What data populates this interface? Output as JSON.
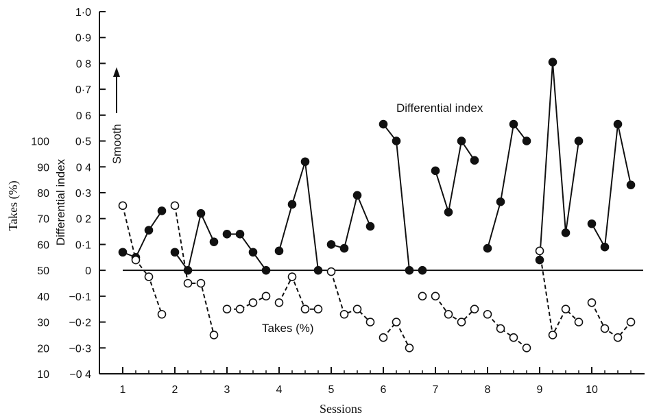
{
  "chart_data": {
    "type": "line",
    "xlabel": "Sessions",
    "ylabel_left": "Takes (%)",
    "ylabel_right": "Differential index",
    "annotation_smooth": "Smooth",
    "annotation_differential": "Differential index",
    "annotation_takes": "Takes (%)",
    "x_ticks": [
      "1",
      "2",
      "3",
      "4",
      "5",
      "6",
      "7",
      "8",
      "9",
      "10"
    ],
    "y_ticks_index": [
      "1·0",
      "0·9",
      "0 8",
      "0·7",
      "0 6",
      "0·5",
      "0 4",
      "0·3",
      "0 2",
      "0·1",
      "0",
      "−0·1",
      "−0·2",
      "−0·3",
      "−0 4"
    ],
    "y_ticks_takes": [
      "100",
      "90",
      "80",
      "70",
      "60",
      "50",
      "40",
      "30",
      "20",
      "10"
    ],
    "xlim": [
      0.5,
      10.9
    ],
    "ylim_index": [
      -0.4,
      1.0
    ],
    "ylim_takes": [
      10,
      100
    ],
    "series": [
      {
        "name": "Differential index",
        "marker": "filled",
        "line": "solid",
        "segments": [
          [
            [
              1.0,
              0.07
            ],
            [
              1.25,
              0.05
            ],
            [
              1.5,
              0.155
            ],
            [
              1.75,
              0.23
            ]
          ],
          [
            [
              2.0,
              0.07
            ],
            [
              2.25,
              0.0
            ],
            [
              2.5,
              0.22
            ],
            [
              2.75,
              0.11
            ]
          ],
          [
            [
              3.0,
              0.14
            ],
            [
              3.25,
              0.14
            ],
            [
              3.5,
              0.07
            ],
            [
              3.75,
              0.0
            ]
          ],
          [
            [
              4.0,
              0.075
            ],
            [
              4.25,
              0.255
            ],
            [
              4.5,
              0.42
            ],
            [
              4.75,
              0.0
            ]
          ],
          [
            [
              5.0,
              0.1
            ],
            [
              5.25,
              0.085
            ],
            [
              5.5,
              0.29
            ],
            [
              5.75,
              0.17
            ]
          ],
          [
            [
              6.0,
              0.565
            ],
            [
              6.25,
              0.5
            ],
            [
              6.5,
              0.0
            ]
          ],
          [
            [
              6.75,
              0.0
            ]
          ],
          [
            [
              7.0,
              0.385
            ],
            [
              7.25,
              0.225
            ],
            [
              7.5,
              0.5
            ],
            [
              7.75,
              0.425
            ]
          ],
          [
            [
              8.0,
              0.085
            ],
            [
              8.25,
              0.265
            ],
            [
              8.5,
              0.565
            ],
            [
              8.75,
              0.5
            ]
          ],
          [
            [
              9.0,
              0.04
            ],
            [
              9.25,
              0.805
            ],
            [
              9.5,
              0.145
            ],
            [
              9.75,
              0.5
            ]
          ],
          [
            [
              10.0,
              0.18
            ],
            [
              10.25,
              0.09
            ],
            [
              10.5,
              0.565
            ],
            [
              10.75,
              0.33
            ]
          ]
        ]
      },
      {
        "name": "Takes (%)",
        "marker": "open",
        "line": "dashed",
        "segments": [
          [
            [
              1.0,
              75
            ],
            [
              1.25,
              54
            ],
            [
              1.5,
              47.5
            ],
            [
              1.75,
              33
            ]
          ],
          [
            [
              2.0,
              75
            ],
            [
              2.25,
              45
            ],
            [
              2.5,
              45
            ],
            [
              2.75,
              25
            ]
          ],
          [
            [
              3.0,
              35
            ],
            [
              3.25,
              35
            ],
            [
              3.5,
              37.5
            ],
            [
              3.75,
              40
            ]
          ],
          [
            [
              4.0,
              37.5
            ],
            [
              4.25,
              47.5
            ],
            [
              4.5,
              35
            ],
            [
              4.75,
              35
            ]
          ],
          [
            [
              5.0,
              49.5
            ],
            [
              5.25,
              33
            ],
            [
              5.5,
              35
            ],
            [
              5.75,
              30
            ]
          ],
          [
            [
              6.0,
              24
            ],
            [
              6.25,
              30
            ],
            [
              6.5,
              20
            ]
          ],
          [
            [
              6.75,
              40
            ]
          ],
          [
            [
              7.0,
              40
            ],
            [
              7.25,
              33
            ],
            [
              7.5,
              30
            ],
            [
              7.75,
              35
            ]
          ],
          [
            [
              8.0,
              33
            ],
            [
              8.25,
              27.5
            ],
            [
              8.5,
              24
            ],
            [
              8.75,
              20
            ]
          ],
          [
            [
              9.0,
              57.5
            ],
            [
              9.25,
              25
            ],
            [
              9.5,
              35
            ],
            [
              9.75,
              30
            ]
          ],
          [
            [
              10.0,
              37.5
            ],
            [
              10.25,
              27.5
            ],
            [
              10.5,
              24
            ],
            [
              10.75,
              30
            ]
          ]
        ]
      }
    ]
  }
}
